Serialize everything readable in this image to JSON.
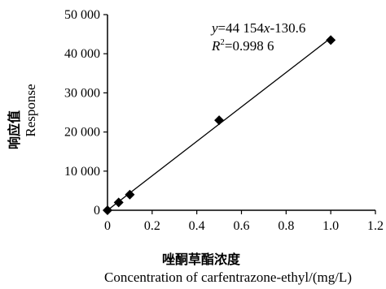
{
  "chart_data": {
    "type": "scatter",
    "x_title_cn": "唑酮草酯浓度",
    "x_title_en": "Concentration of carfentrazone-ethyl/(mg/L)",
    "y_title_cn": "响应值",
    "y_title_en": "Response",
    "xlim": [
      0,
      1.2
    ],
    "ylim": [
      0,
      50000
    ],
    "x_ticks": [
      "0",
      "0.2",
      "0.4",
      "0.6",
      "0.8",
      "1.0",
      "1.2"
    ],
    "y_ticks": [
      "0",
      "10 000",
      "20 000",
      "30 000",
      "40 000",
      "50 000"
    ],
    "x_tick_values": [
      0,
      0.2,
      0.4,
      0.6,
      0.8,
      1.0,
      1.2
    ],
    "y_tick_values": [
      0,
      10000,
      20000,
      30000,
      40000,
      50000
    ],
    "series": [
      {
        "points": [
          {
            "x": 0,
            "y": 0
          },
          {
            "x": 0.05,
            "y": 2000
          },
          {
            "x": 0.1,
            "y": 4000
          },
          {
            "x": 0.5,
            "y": 23000
          },
          {
            "x": 1.0,
            "y": 43500
          }
        ]
      }
    ],
    "fit_line": {
      "slope": 44154,
      "intercept": -130.6,
      "x_range": [
        0,
        1.0
      ]
    },
    "annotation": {
      "eq_y": "y",
      "eq_mid": "=44 154",
      "eq_x": "x",
      "eq_tail": "-130.6",
      "r_label": "R",
      "r_sup": "2",
      "r_value": "=0.998 6"
    },
    "grid": false,
    "legend": "none"
  }
}
